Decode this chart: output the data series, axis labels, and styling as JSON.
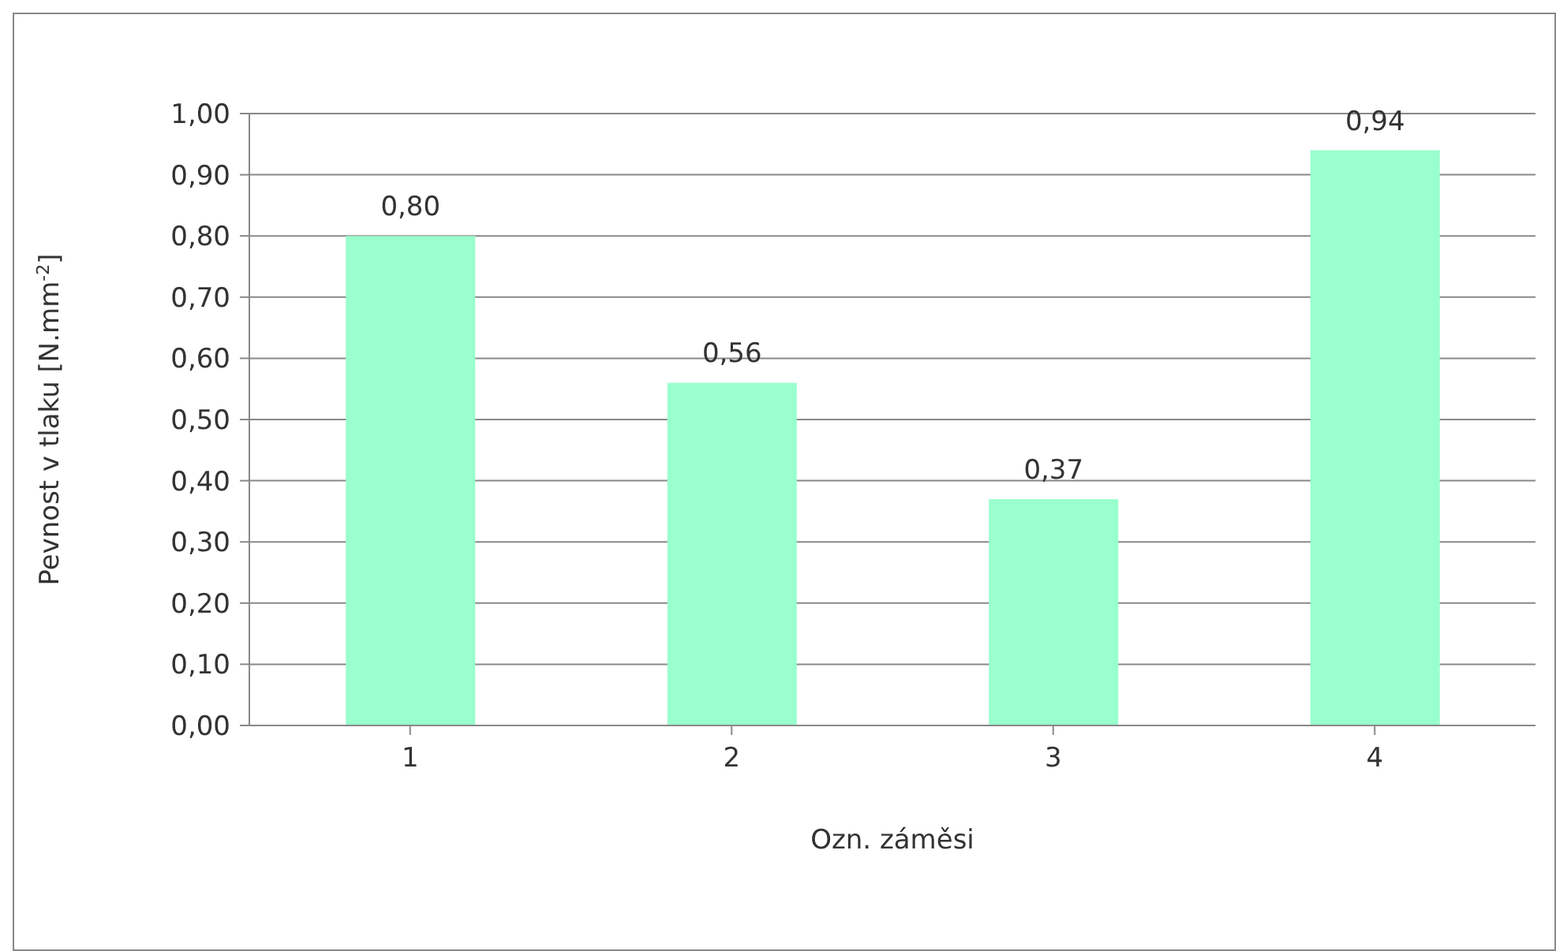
{
  "chart_data": {
    "type": "bar",
    "xlabel": "Ozn. záměsi",
    "ylabel": "Pevnost v tlaku [N.mm$^{-2}$]",
    "categories": [
      "1",
      "2",
      "3",
      "4"
    ],
    "values": [
      0.8,
      0.56,
      0.37,
      0.94
    ],
    "value_labels": [
      "0,80",
      "0,56",
      "0,37",
      "0,94"
    ],
    "color": "#99ffcc",
    "ylim": [
      0,
      1
    ],
    "yticks": [
      {
        "value": 0,
        "label": "0,00"
      },
      {
        "value": 0.1,
        "label": "0,10"
      },
      {
        "value": 0.2,
        "label": "0,20"
      },
      {
        "value": 0.3,
        "label": "0,30"
      },
      {
        "value": 0.4,
        "label": "0,40"
      },
      {
        "value": 0.5,
        "label": "0,50"
      },
      {
        "value": 0.6,
        "label": "0,60"
      },
      {
        "value": 0.7,
        "label": "0,70"
      },
      {
        "value": 0.8,
        "label": "0,80"
      },
      {
        "value": 0.9,
        "label": "0,90"
      },
      {
        "value": 1,
        "label": "1,00"
      }
    ],
    "grid": "y"
  }
}
